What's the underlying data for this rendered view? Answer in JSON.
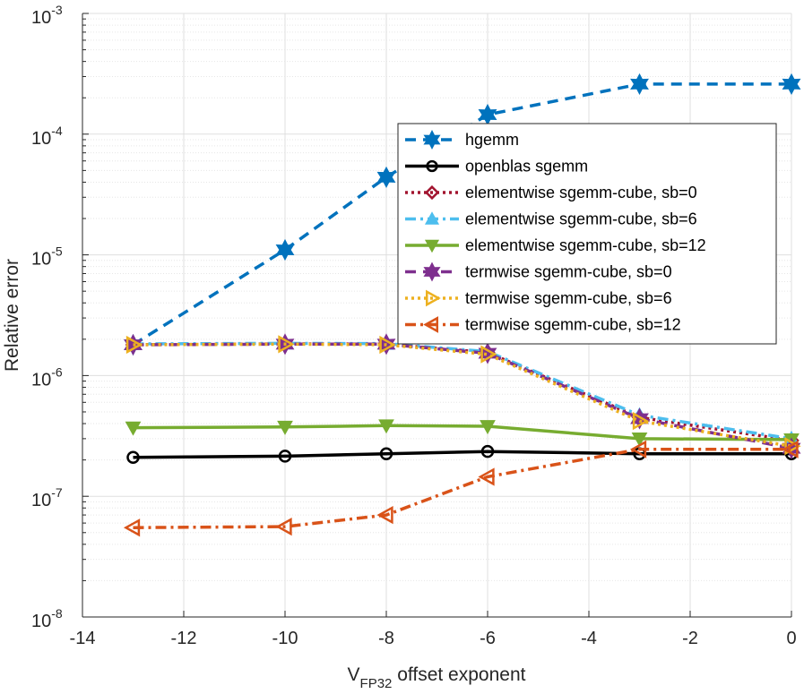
{
  "chart_data": {
    "type": "line",
    "title": "",
    "xlabel": "V",
    "xlabel_sub": "FP32",
    "xlabel_rest": " offset exponent",
    "ylabel": "Relative error",
    "xlim": [
      -14,
      0
    ],
    "ylim_exp": [
      -8,
      -3
    ],
    "y_scale": "log",
    "grid": true,
    "legend_position": "top-right",
    "x_ticks": [
      -14,
      -12,
      -10,
      -8,
      -6,
      -4,
      -2,
      0
    ],
    "x_tick_labels": [
      "-14",
      "-12",
      "-10",
      "-8",
      "-6",
      "-4",
      "-2",
      "0"
    ],
    "y_ticks_exp": [
      -8,
      -7,
      -6,
      -5,
      -4,
      -3
    ],
    "y_tick_base": "10",
    "y_tick_exps": [
      "-8",
      "-7",
      "-6",
      "-5",
      "-4",
      "-3"
    ],
    "x": [
      -13,
      -10,
      -8,
      -6,
      -3,
      0
    ],
    "series": [
      {
        "name": "hgemm",
        "color": "#0072BD",
        "dash": "dashed",
        "marker": "hexagram",
        "values": [
          1.8e-06,
          1.1e-05,
          4.4e-05,
          0.000145,
          0.00026,
          0.00026
        ]
      },
      {
        "name": "openblas sgemm",
        "color": "#000000",
        "dash": "solid",
        "marker": "circle",
        "values": [
          2.1e-07,
          2.15e-07,
          2.25e-07,
          2.35e-07,
          2.25e-07,
          2.25e-07
        ]
      },
      {
        "name": "elementwise sgemm-cube, sb=0",
        "color": "#A2142F",
        "dash": "dotted",
        "marker": "diamond",
        "values": [
          1.8e-06,
          1.83e-06,
          1.82e-06,
          1.55e-06,
          4.5e-07,
          2.9e-07
        ]
      },
      {
        "name": "elementwise sgemm-cube, sb=6",
        "color": "#4DBEEE",
        "dash": "dashdot",
        "marker": "triangle-up",
        "values": [
          1.83e-06,
          1.85e-06,
          1.84e-06,
          1.58e-06,
          4.7e-07,
          3e-07
        ]
      },
      {
        "name": "elementwise sgemm-cube, sb=12",
        "color": "#77AC30",
        "dash": "solid",
        "marker": "triangle-down",
        "values": [
          3.7e-07,
          3.75e-07,
          3.85e-07,
          3.8e-07,
          3e-07,
          2.95e-07
        ]
      },
      {
        "name": "termwise sgemm-cube, sb=0",
        "color": "#7E2F8E",
        "dash": "dashed",
        "marker": "hexagram",
        "values": [
          1.8e-06,
          1.82e-06,
          1.82e-06,
          1.53e-06,
          4.4e-07,
          2.5e-07
        ]
      },
      {
        "name": "termwise sgemm-cube, sb=6",
        "color": "#EDB120",
        "dash": "dotted",
        "marker": "triangle-right",
        "values": [
          1.8e-06,
          1.82e-06,
          1.8e-06,
          1.5e-06,
          4.2e-07,
          2.6e-07
        ]
      },
      {
        "name": "termwise sgemm-cube, sb=12",
        "color": "#D95319",
        "dash": "dashdot",
        "marker": "triangle-left",
        "values": [
          5.5e-08,
          5.6e-08,
          7e-08,
          1.45e-07,
          2.45e-07,
          2.45e-07
        ]
      }
    ]
  }
}
